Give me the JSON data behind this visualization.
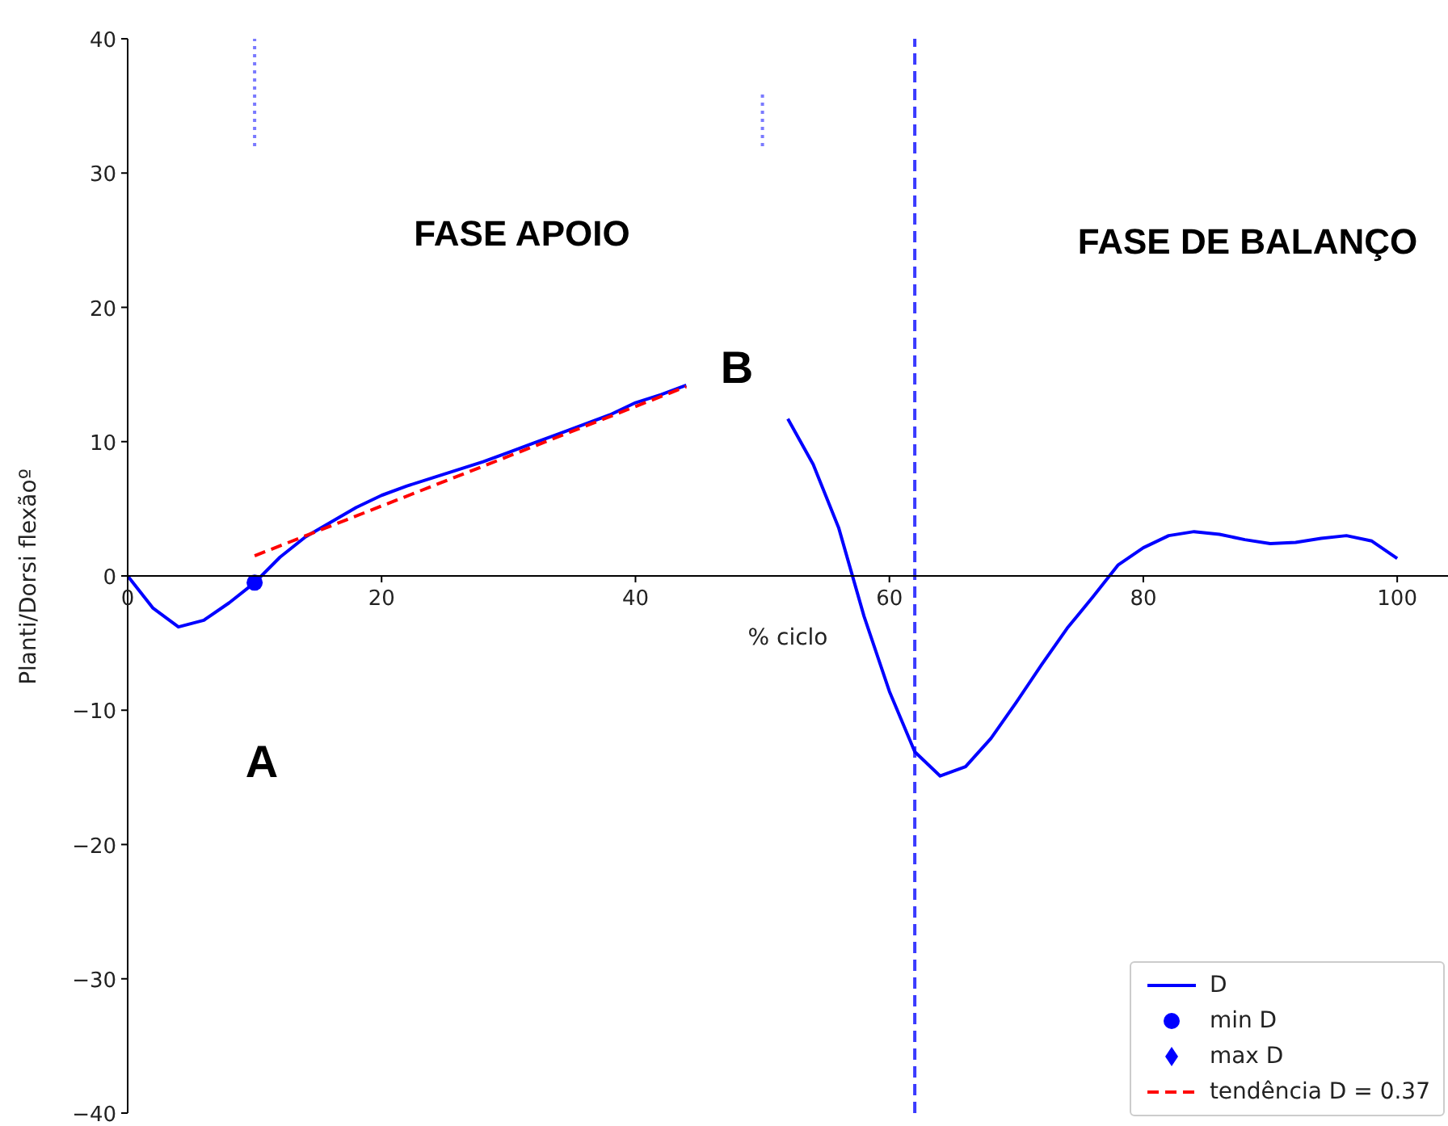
{
  "chart_data": {
    "type": "line",
    "xlabel": "% ciclo",
    "ylabel": "Planti/Dorsi flexãoº",
    "x": [
      0,
      2,
      4,
      6,
      8,
      10,
      12,
      14,
      16,
      18,
      20,
      22,
      24,
      26,
      28,
      30,
      32,
      34,
      36,
      38,
      40,
      42,
      44,
      46,
      48,
      50,
      52,
      54,
      56,
      58,
      60,
      62,
      64,
      66,
      68,
      70,
      72,
      74,
      76,
      78,
      80,
      82,
      84,
      86,
      88,
      90,
      92,
      94,
      96,
      98,
      100
    ],
    "series": [
      {
        "name": "D",
        "color": "#0000ff",
        "marker": "none",
        "line_style": "solid",
        "values": [
          0,
          -2.4,
          -3.8,
          -3.3,
          -2.0,
          -0.5,
          1.4,
          2.9,
          4.0,
          5.1,
          6.0,
          6.7,
          7.3,
          7.9,
          8.5,
          9.2,
          9.9,
          10.6,
          11.3,
          12.0,
          12.9,
          13.5,
          14.2,
          null,
          null,
          null,
          11.7,
          8.3,
          3.6,
          -3.0,
          -8.6,
          -13.1,
          -14.9,
          -14.2,
          -12.1,
          -9.4,
          -6.6,
          -3.9,
          -1.6,
          0.8,
          2.1,
          3.0,
          3.3,
          3.1,
          2.7,
          2.4,
          2.5,
          2.8,
          3.0,
          2.6,
          1.3
        ]
      },
      {
        "name": "min D",
        "type": "scatter",
        "color": "#0000ff",
        "marker": "circle",
        "x": [
          10
        ],
        "values": [
          -0.5
        ]
      },
      {
        "name": "max D",
        "type": "scatter",
        "color": "#0000ff",
        "marker": "diamond",
        "values": [
          null,
          null,
          null,
          null,
          null,
          null,
          null,
          null,
          null,
          null,
          null,
          null,
          null,
          null,
          null,
          null,
          null,
          null,
          null,
          null,
          null,
          null,
          null,
          null,
          null,
          null,
          null,
          null,
          null,
          null,
          null,
          null,
          null,
          null,
          null,
          null,
          null,
          null,
          null,
          null,
          null,
          null,
          null,
          null,
          null,
          null,
          null,
          null,
          null,
          null,
          null
        ]
      },
      {
        "name": "tendência D = 0.37",
        "type": "line",
        "color": "#ff0000",
        "marker": "none",
        "line_style": "dashed",
        "x": [
          10,
          44
        ],
        "values": [
          1.5,
          14.1
        ]
      },
      {
        "type": "line",
        "color": "#7a7aff",
        "marker": "none",
        "line_style": "dotted",
        "x": [
          10,
          10
        ],
        "values": [
          32,
          40
        ]
      },
      {
        "type": "line",
        "color": "#7a7aff",
        "marker": "none",
        "line_style": "dotted",
        "x": [
          50,
          50
        ],
        "values": [
          32,
          36
        ]
      }
    ],
    "ref_lines": [
      {
        "axis": "x",
        "value": 62,
        "color": "#3a3aff",
        "line_style": "dashed"
      }
    ],
    "annotations": [
      "FASE APOIO",
      "FASE DE BALANÇO",
      "A",
      "B"
    ],
    "xlim": [
      0,
      104
    ],
    "ylim": [
      -40,
      40
    ],
    "xticks": [
      0,
      20,
      40,
      60,
      80,
      100
    ],
    "yticks": [
      {
        "value": -40,
        "label": "−40"
      },
      {
        "value": -30,
        "label": "−30"
      },
      {
        "value": -20,
        "label": "−20"
      },
      {
        "value": -10,
        "label": "−10"
      },
      0,
      10,
      20,
      30,
      40
    ],
    "grid": false,
    "legend": "bottom right"
  }
}
